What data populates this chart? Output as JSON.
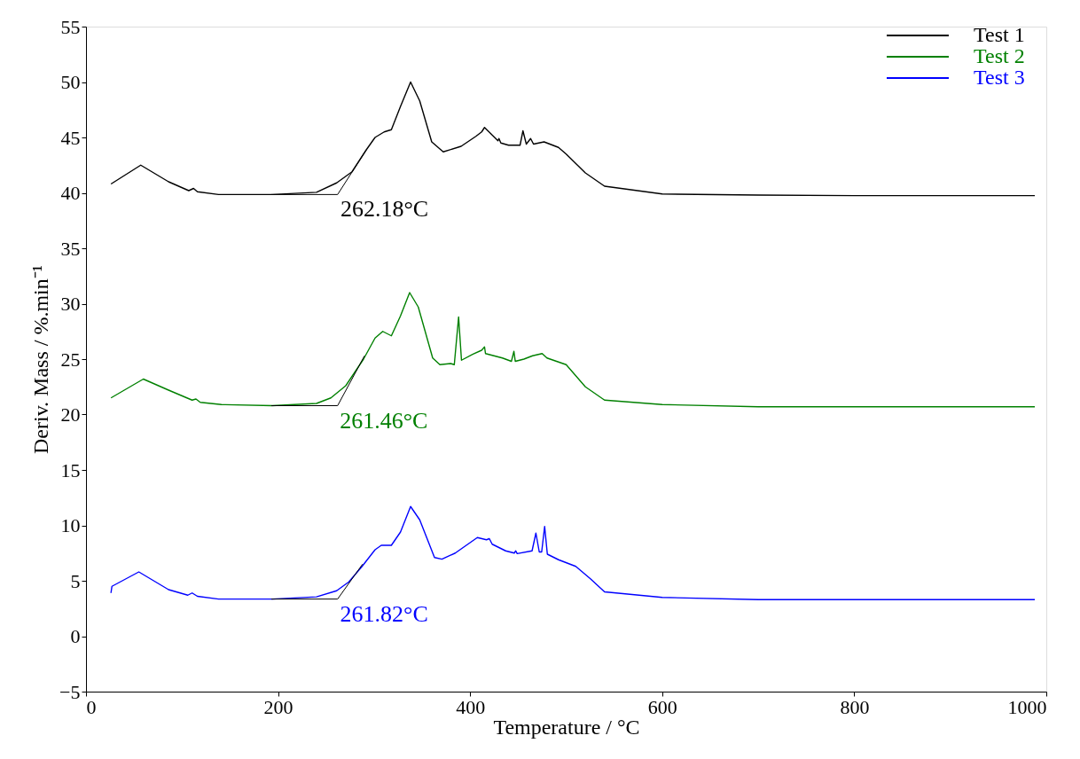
{
  "chart_data": {
    "type": "line",
    "xlabel": "Temperature / °C",
    "ylabel": "Deriv. Mass / %.min⁻¹",
    "xlim": [
      0,
      1000
    ],
    "xticks": [
      0,
      200,
      400,
      600,
      800,
      1000
    ],
    "ylim": [
      -5,
      55
    ],
    "yticks": [
      -5,
      0,
      5,
      10,
      15,
      20,
      25,
      30,
      35,
      40,
      45,
      50,
      55
    ],
    "grid": false,
    "legend": "top right",
    "line_style": "solid",
    "marker": "none",
    "series": [
      {
        "name": "Test 1",
        "color": "#000000",
        "x": [
          26,
          57,
          86,
          107,
          112,
          116,
          138,
          194,
          240,
          261,
          277,
          292,
          301,
          310.5,
          318,
          327.5,
          338,
          347.5,
          360,
          372,
          390.6,
          406,
          412,
          415,
          429,
          430,
          432,
          440,
          449,
          452,
          455,
          458.5,
          463,
          466,
          477,
          492,
          500,
          520,
          540,
          600,
          700,
          800,
          988
        ],
        "values": [
          40.8,
          42.5,
          41.0,
          40.2,
          40.4,
          40.1,
          39.85,
          39.85,
          40.05,
          40.9,
          41.9,
          43.9,
          45.0,
          45.5,
          45.7,
          47.8,
          50.0,
          48.3,
          44.6,
          43.7,
          44.2,
          45.1,
          45.5,
          45.9,
          44.7,
          44.9,
          44.5,
          44.3,
          44.3,
          44.3,
          45.6,
          44.4,
          44.9,
          44.4,
          44.6,
          44.1,
          43.5,
          41.8,
          40.6,
          39.9,
          39.8,
          39.75,
          39.75
        ]
      },
      {
        "name": "Test 2",
        "color": "#008000",
        "x": [
          26,
          59.7,
          86,
          110.5,
          114.5,
          119,
          141,
          194,
          240,
          255,
          270.5,
          289,
          301,
          309,
          318,
          327.5,
          337,
          346,
          361,
          368.5,
          379.7,
          383.5,
          388,
          391,
          403,
          412,
          415,
          416,
          433.6,
          443,
          445.6,
          447,
          456,
          465,
          475,
          480,
          500,
          520,
          540,
          600,
          700,
          800,
          988
        ],
        "values": [
          21.5,
          23.2,
          22.2,
          21.3,
          21.4,
          21.1,
          20.9,
          20.8,
          21.0,
          21.5,
          22.6,
          25.0,
          26.9,
          27.5,
          27.1,
          28.9,
          31.0,
          29.7,
          25.1,
          24.5,
          24.6,
          24.5,
          28.8,
          24.9,
          25.45,
          25.8,
          26.1,
          25.5,
          25.1,
          24.8,
          25.7,
          24.8,
          25.0,
          25.3,
          25.5,
          25.1,
          24.5,
          22.5,
          21.3,
          20.9,
          20.7,
          20.7,
          20.7
        ]
      },
      {
        "name": "Test 3",
        "color": "#0000ff",
        "x": [
          26,
          27,
          55,
          86,
          106,
          110.5,
          116,
          138,
          194,
          240,
          261,
          273.7,
          287.5,
          301,
          307.5,
          318,
          327.5,
          338,
          347.5,
          362.9,
          370.6,
          384.5,
          407.5,
          417,
          420,
          423,
          437,
          446,
          447.5,
          449,
          464.5,
          468.5,
          472,
          474.5,
          477.6,
          480.4,
          492,
          510,
          525,
          540,
          600,
          700,
          800,
          988
        ],
        "values": [
          3.9,
          4.5,
          5.8,
          4.2,
          3.7,
          3.9,
          3.6,
          3.35,
          3.35,
          3.55,
          4.1,
          4.9,
          6.3,
          7.8,
          8.2,
          8.2,
          9.4,
          11.7,
          10.5,
          7.1,
          6.95,
          7.5,
          8.9,
          8.7,
          8.8,
          8.3,
          7.7,
          7.5,
          7.7,
          7.45,
          7.7,
          9.3,
          7.6,
          7.6,
          9.9,
          7.4,
          6.9,
          6.3,
          5.2,
          4.0,
          3.5,
          3.3,
          3.3,
          3.3
        ]
      },
      {
        "type": "line",
        "color": "#000000",
        "x": [
          193,
          262,
          292
        ],
        "values": [
          39.85,
          39.85,
          43.9
        ]
      },
      {
        "type": "line",
        "color": "#000000",
        "x": [
          193,
          262,
          290
        ],
        "values": [
          20.8,
          20.8,
          25.3
        ]
      },
      {
        "type": "line",
        "color": "#000000",
        "x": [
          193,
          262,
          288
        ],
        "values": [
          3.35,
          3.35,
          6.5
        ]
      }
    ],
    "annotations": [
      {
        "text": "262.18°C",
        "x": 262.18,
        "y": 39.85
      },
      {
        "text": "261.46°C",
        "x": 261.46,
        "y": 20.8
      },
      {
        "text": "261.82°C",
        "x": 261.82,
        "y": 3.35
      }
    ]
  }
}
